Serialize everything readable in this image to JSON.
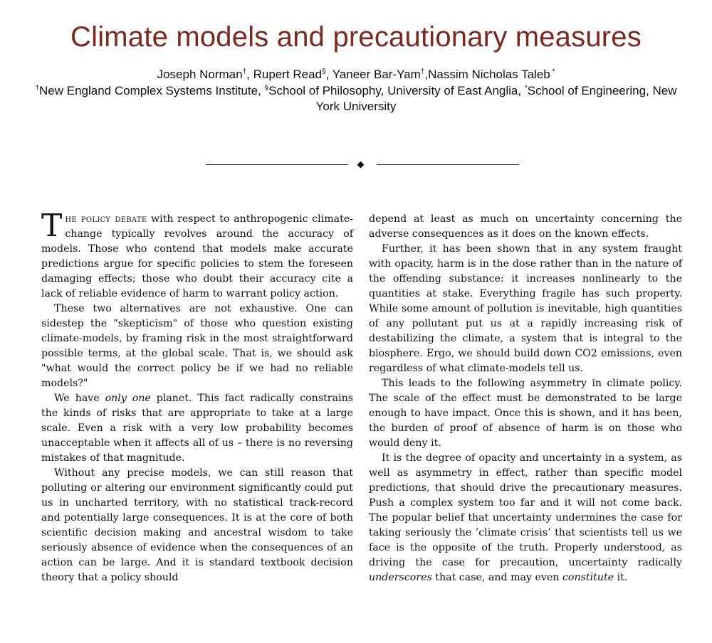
{
  "paper": {
    "title": "Climate models and precautionary measures",
    "authors": [
      {
        "name": "Joseph Norman",
        "mark": "†",
        "sep": ", "
      },
      {
        "name": "Rupert Read",
        "mark": "§",
        "sep": ", "
      },
      {
        "name": "Yaneer Bar-Yam",
        "mark": "†",
        "sep": ","
      },
      {
        "name": "Nassim Nicholas Taleb",
        "mark": " *",
        "sep": ""
      }
    ],
    "affiliations": {
      "a1_mark": "†",
      "a1_text": "New England Complex Systems Institute, ",
      "a2_mark": "§",
      "a2_text": "School of Philosophy, University of East Anglia, ",
      "a3_mark": "*",
      "a3_text": "School of Engineering, New York University"
    },
    "divider_glyph": "◆"
  },
  "body": {
    "left": {
      "p1_dropcap": "T",
      "p1_smallcaps": "he policy debate",
      "p1_rest": " with respect to anthropogenic climate-change typically revolves around the accuracy of models. Those who contend that models make accurate predictions argue for specific policies to stem the foreseen damaging effects; those who doubt their accuracy cite a lack of reliable evidence of harm to warrant policy action.",
      "p2": "These two alternatives are not exhaustive. One can sidestep the \"skepticism\" of those who question existing climate-models, by framing risk in the most straightforward possible terms, at the global scale. That is, we should ask \"what would the correct policy be if we had no reliable models?\"",
      "p3_a": "We have ",
      "p3_em": "only one",
      "p3_b": " planet. This fact radically constrains the kinds of risks that are appropriate to take at a large scale. Even a risk with a very low probability becomes unacceptable when it affects all of us – there is no reversing mistakes of that magnitude.",
      "p4": "Without any precise models, we can still reason that polluting or altering our environment significantly could put us in uncharted territory, with no statistical track-record and potentially large consequences. It is at the core of both scientific decision making and ancestral wisdom to take seriously absence of evidence when the consequences of an action can be large. And it is standard textbook decision theory that a policy should"
    },
    "right": {
      "p1": "depend at least as much on uncertainty concerning the adverse consequences as it does on the known effects.",
      "p2": "Further, it has been shown that in any system fraught with opacity, harm is in the dose rather than in the nature of the offending substance: it increases nonlinearly to the quantities at stake. Everything fragile has such property. While some amount of pollution is inevitable, high quantities of any pollutant put us at a rapidly increasing risk of destabilizing the climate, a system that is integral to the biosphere. Ergo, we should build down CO2 emissions, even regardless of what climate-models tell us.",
      "p3": "This leads to the following asymmetry in climate policy. The scale of the effect must be demonstrated to be large enough to have impact. Once this is shown, and it has been, the burden of proof of absence of harm is on those who would deny it.",
      "p4_a": "It is the degree of opacity and uncertainty in a system, as well as asymmetry in effect, rather than specific model predictions, that should drive the precautionary measures. Push a complex system too far and it will not come back. The popular belief that uncertainty undermines the case for taking seriously the ’climate crisis’ that scientists tell us we face is the opposite of the truth. Properly understood, as driving the case for precaution, uncertainty radically ",
      "p4_em1": "underscores",
      "p4_b": " that case, and may even ",
      "p4_em2": "constitute",
      "p4_c": " it."
    }
  }
}
